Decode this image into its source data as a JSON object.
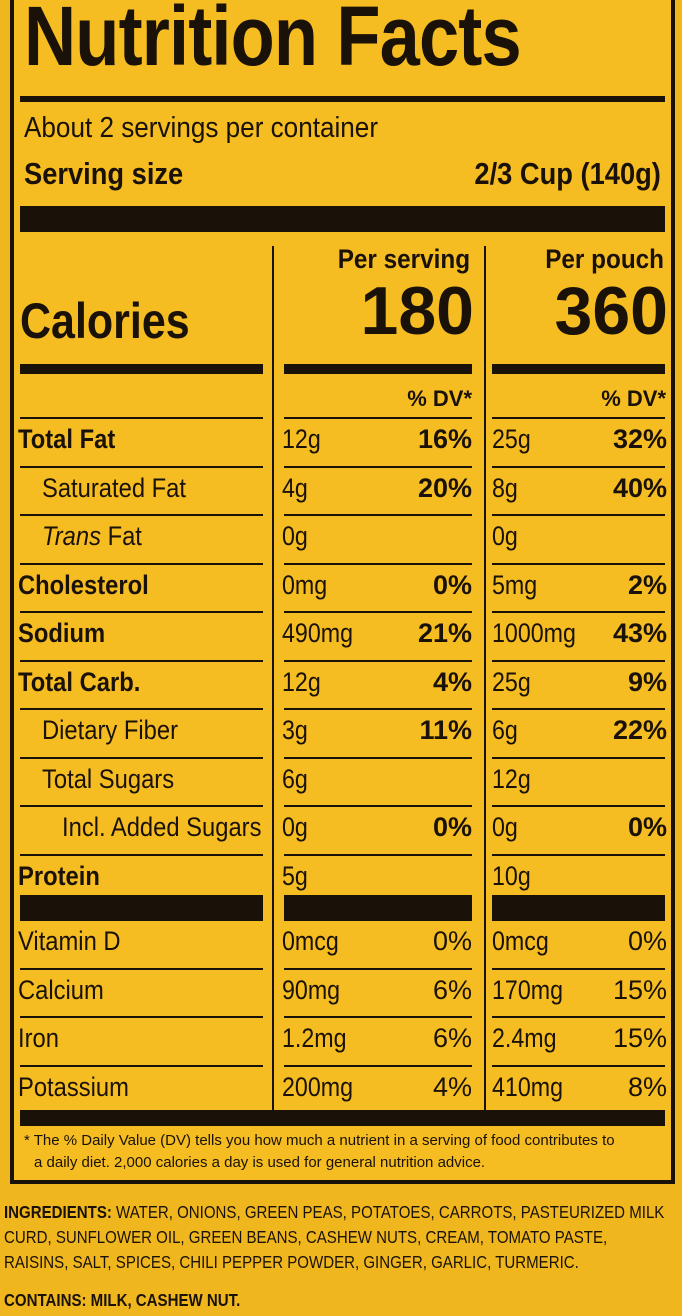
{
  "title": "Nutrition Facts",
  "servings_per_container": "About 2 servings per container",
  "serving_size_label": "Serving size",
  "serving_size_value": "2/3 Cup (140g)",
  "col1_header": "Per serving",
  "col2_header": "Per pouch",
  "calories_label": "Calories",
  "calories_per_serving": "180",
  "calories_per_pouch": "360",
  "dv_header": "% DV*",
  "nutrients": [
    {
      "label": "Total Fat",
      "amt1": "12g",
      "pct1": "16%",
      "amt2": "25g",
      "pct2": "32%"
    },
    {
      "label": "Saturated Fat",
      "amt1": "4g",
      "pct1": "20%",
      "amt2": "8g",
      "pct2": "40%"
    },
    {
      "label_italic": "Trans",
      "label": " Fat",
      "amt1": "0g",
      "pct1": "",
      "amt2": "0g",
      "pct2": ""
    },
    {
      "label": "Cholesterol",
      "amt1": "0mg",
      "pct1": "0%",
      "amt2": "5mg",
      "pct2": "2%"
    },
    {
      "label": "Sodium",
      "amt1": "490mg",
      "pct1": "21%",
      "amt2": "1000mg",
      "pct2": "43%"
    },
    {
      "label": "Total Carb.",
      "amt1": "12g",
      "pct1": "4%",
      "amt2": "25g",
      "pct2": "9%"
    },
    {
      "label": "Dietary Fiber",
      "amt1": "3g",
      "pct1": "11%",
      "amt2": "6g",
      "pct2": "22%"
    },
    {
      "label": "Total Sugars",
      "amt1": "6g",
      "pct1": "",
      "amt2": "12g",
      "pct2": ""
    },
    {
      "label": "Incl. Added Sugars",
      "amt1": "0g",
      "pct1": "0%",
      "amt2": "0g",
      "pct2": "0%"
    },
    {
      "label": "Protein",
      "amt1": "5g",
      "pct1": "",
      "amt2": "10g",
      "pct2": ""
    }
  ],
  "vitamins": [
    {
      "label": "Vitamin D",
      "amt1": "0mcg",
      "pct1": "0%",
      "amt2": "0mcg",
      "pct2": "0%"
    },
    {
      "label": "Calcium",
      "amt1": "90mg",
      "pct1": "6%",
      "amt2": "170mg",
      "pct2": "15%"
    },
    {
      "label": "Iron",
      "amt1": "1.2mg",
      "pct1": "6%",
      "amt2": "2.4mg",
      "pct2": "15%"
    },
    {
      "label": "Potassium",
      "amt1": "200mg",
      "pct1": "4%",
      "amt2": "410mg",
      "pct2": "8%"
    }
  ],
  "footnote_line1": "* The % Daily Value (DV) tells you how much a nutrient in a serving of food contributes to",
  "footnote_line2": "a daily diet. 2,000 calories a day is used for general nutrition advice.",
  "ingredients_label": "INGREDIENTS:",
  "ingredients_text": " WATER, ONIONS, GREEN PEAS, POTATOES, CARROTS, PASTEURIZED MILK CURD, SUNFLOWER OIL, GREEN BEANS, CASHEW NUTS, CREAM, TOMATO PASTE, RAISINS, SALT, SPICES, CHILI PEPPER POWDER, GINGER, GARLIC, TURMERIC.",
  "contains": "CONTAINS: MILK, CASHEW NUT.",
  "colors": {
    "background": "#f5bd22",
    "ink": "#1a1208",
    "outer": "#f0b61e"
  }
}
